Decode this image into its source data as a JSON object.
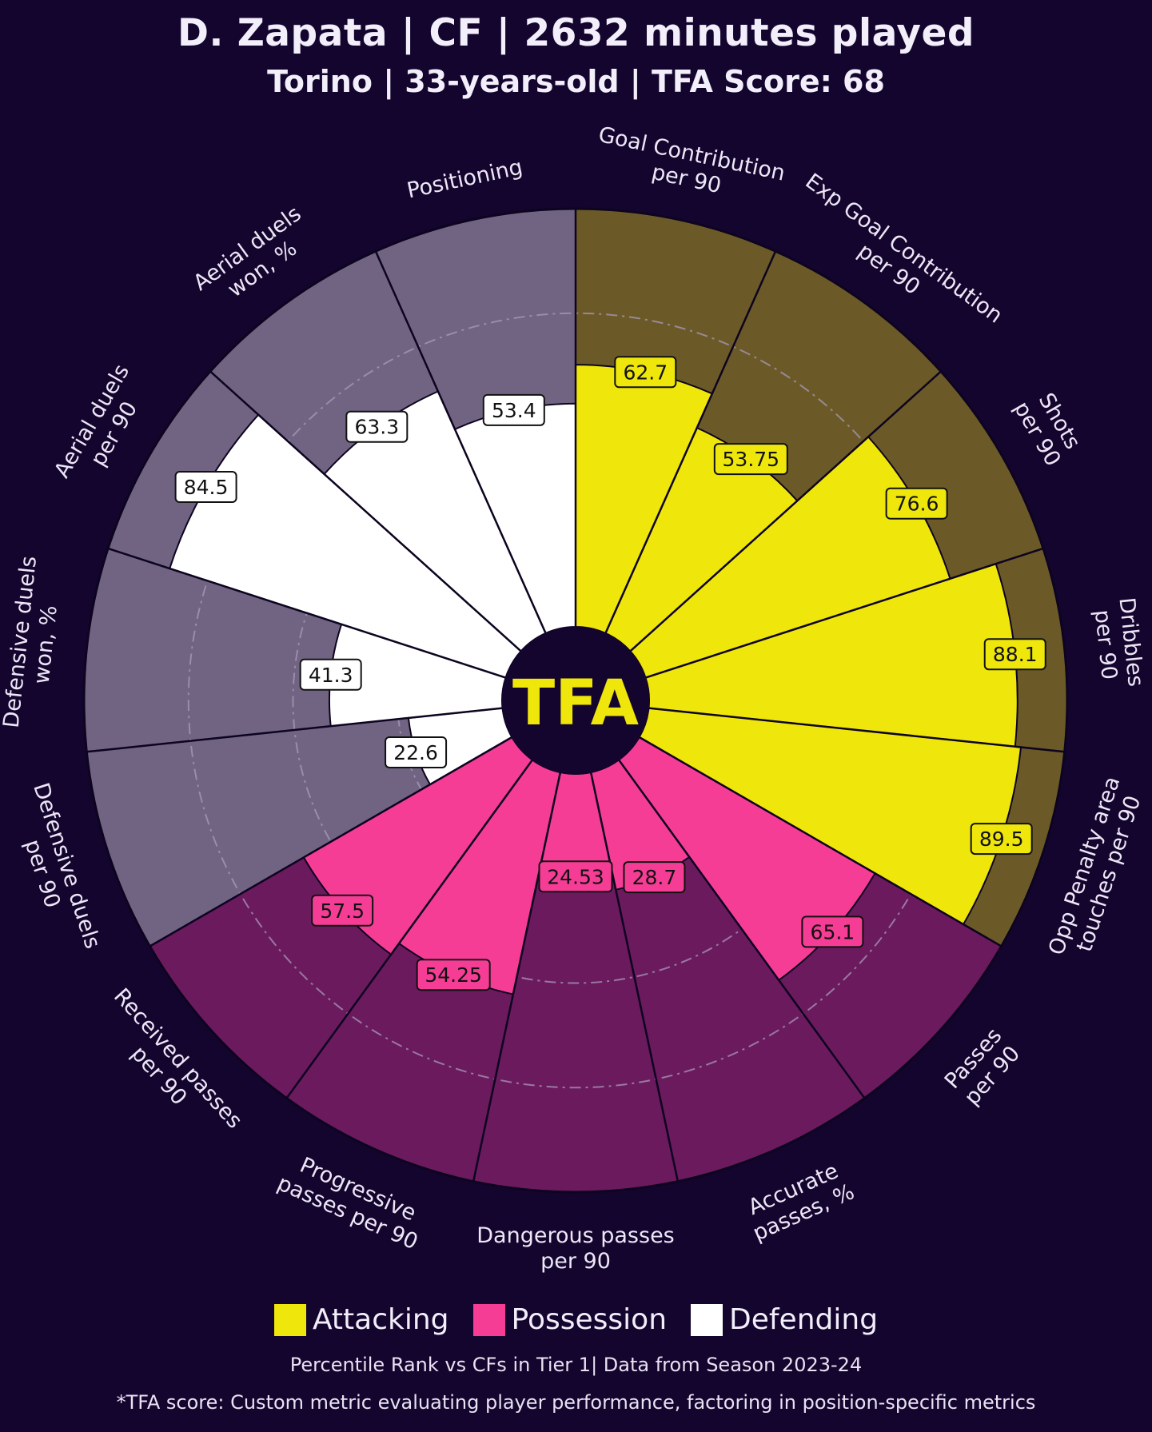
{
  "header": {
    "title": "D. Zapata | CF | 2632 minutes played",
    "subtitle": "Torino | 33-years-old | TFA Score: 68"
  },
  "logo": {
    "text": "TFA"
  },
  "legend": [
    {
      "label": "Attacking",
      "color": "#efe60b"
    },
    {
      "label": "Possession",
      "color": "#f53d96"
    },
    {
      "label": "Defending",
      "color": "#ffffff"
    }
  ],
  "footer": {
    "note": "Percentile Rank vs CFs in Tier 1| Data from Season 2023-24",
    "disclaimer": "*TFA score: Custom metric evaluating player performance, factoring in position-specific metrics"
  },
  "colors": {
    "background": "#14052e",
    "attacking_fill": "#efe60b",
    "attacking_bg": "#6b5a28",
    "possession_fill": "#f53d96",
    "possession_bg": "#6b1a5e",
    "defending_fill": "#ffffff",
    "defending_bg": "#706482"
  },
  "chart_data": {
    "type": "pizza",
    "value_scale": [
      0,
      100
    ],
    "grid": "dash-dot rings",
    "legend_position": "bottom",
    "metrics": [
      {
        "label": [
          "Goal Contribution",
          "per 90"
        ],
        "value": 62.7,
        "group": "Attacking"
      },
      {
        "label": [
          "Exp Goal Contribution",
          "per 90"
        ],
        "value": 53.75,
        "group": "Attacking"
      },
      {
        "label": [
          "Shots",
          "per 90"
        ],
        "value": 76.6,
        "group": "Attacking"
      },
      {
        "label": [
          "Dribbles",
          "per 90"
        ],
        "value": 88.1,
        "group": "Attacking"
      },
      {
        "label": [
          "Opp Penalty area",
          "touches per 90"
        ],
        "value": 89.5,
        "group": "Attacking"
      },
      {
        "label": [
          "Passes",
          "per 90"
        ],
        "value": 65.1,
        "group": "Possession"
      },
      {
        "label": [
          "Accurate",
          "passes, %"
        ],
        "value": 28.7,
        "group": "Possession"
      },
      {
        "label": [
          "Dangerous passes",
          "per 90"
        ],
        "value": 24.53,
        "group": "Possession"
      },
      {
        "label": [
          "Progressive",
          "passes per 90"
        ],
        "value": 54.25,
        "group": "Possession"
      },
      {
        "label": [
          "Received passes",
          "per 90"
        ],
        "value": 57.5,
        "group": "Possession"
      },
      {
        "label": [
          "Defensive duels",
          "per 90"
        ],
        "value": 22.6,
        "group": "Defending"
      },
      {
        "label": [
          "Defensive duels",
          "won, %"
        ],
        "value": 41.3,
        "group": "Defending"
      },
      {
        "label": [
          "Aerial duels",
          "per 90"
        ],
        "value": 84.5,
        "group": "Defending"
      },
      {
        "label": [
          "Aerial duels",
          "won, %"
        ],
        "value": 63.3,
        "group": "Defending"
      },
      {
        "label": [
          "Positioning"
        ],
        "value": 53.4,
        "group": "Defending"
      }
    ]
  }
}
